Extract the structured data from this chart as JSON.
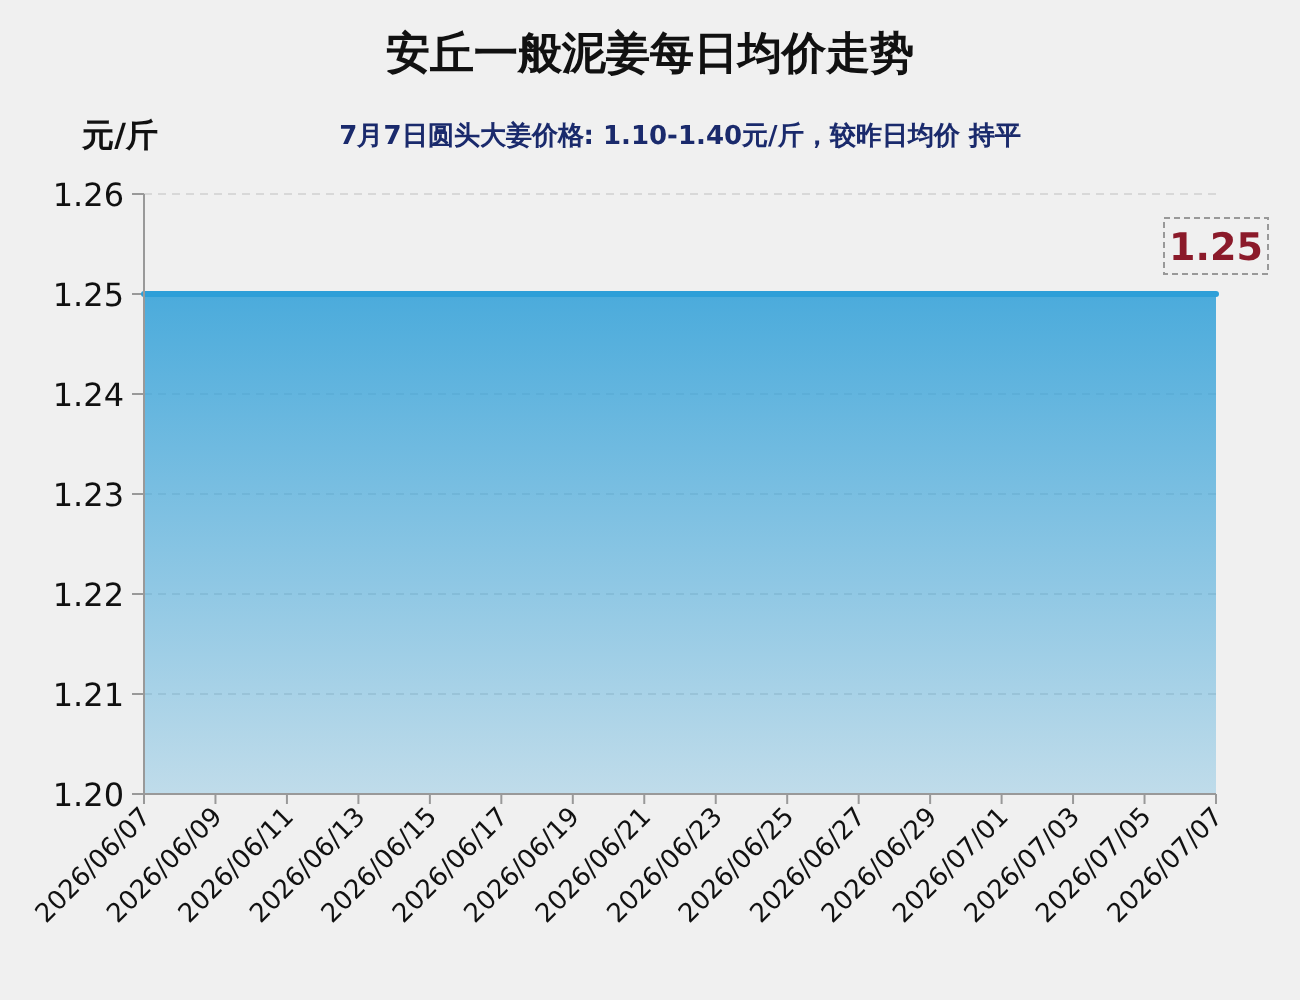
{
  "chart_data": {
    "type": "area",
    "title": "安丘一般泥姜每日均价走势",
    "subtitle": "7月7日圆头大姜价格: 1.10-1.40元/斤，较昨日均价 持平",
    "ylabel": "元/斤",
    "x": [
      "2026-06-07",
      "2026-06-08",
      "2026-06-09",
      "2026-06-10",
      "2026-06-11",
      "2026-06-12",
      "2026-06-13",
      "2026-06-14",
      "2026-06-15",
      "2026-06-16",
      "2026-06-17",
      "2026-06-18",
      "2026-06-19",
      "2026-06-20",
      "2026-06-21",
      "2026-06-22",
      "2026-06-23",
      "2026-06-24",
      "2026-06-25",
      "2026-06-26",
      "2026-06-27",
      "2026-06-28",
      "2026-06-29",
      "2026-06-30",
      "2026-07-01",
      "2026-07-02",
      "2026-07-03",
      "2026-07-04",
      "2026-07-05",
      "2026-07-06",
      "2026-07-07"
    ],
    "series": [
      {
        "color": "#2e9fd8",
        "values": [
          1.25,
          1.25,
          1.25,
          1.25,
          1.25,
          1.25,
          1.25,
          1.25,
          1.25,
          1.25,
          1.25,
          1.25,
          1.25,
          1.25,
          1.25,
          1.25,
          1.25,
          1.25,
          1.25,
          1.25,
          1.25,
          1.25,
          1.25,
          1.25,
          1.25,
          1.25,
          1.25,
          1.25,
          1.25,
          1.25,
          1.25
        ]
      }
    ],
    "xlim": [
      "2026-06-07",
      "2026-07-07"
    ],
    "xticks": [
      {
        "value": "2026-06-07",
        "label": "2026/06/07"
      },
      {
        "value": "2026-06-09",
        "label": "2026/06/09"
      },
      {
        "value": "2026-06-11",
        "label": "2026/06/11"
      },
      {
        "value": "2026-06-13",
        "label": "2026/06/13"
      },
      {
        "value": "2026-06-15",
        "label": "2026/06/15"
      },
      {
        "value": "2026-06-17",
        "label": "2026/06/17"
      },
      {
        "value": "2026-06-19",
        "label": "2026/06/19"
      },
      {
        "value": "2026-06-21",
        "label": "2026/06/21"
      },
      {
        "value": "2026-06-23",
        "label": "2026/06/23"
      },
      {
        "value": "2026-06-25",
        "label": "2026/06/25"
      },
      {
        "value": "2026-06-27",
        "label": "2026/06/27"
      },
      {
        "value": "2026-06-29",
        "label": "2026/06/29"
      },
      {
        "value": "2026-07-01",
        "label": "2026/07/01"
      },
      {
        "value": "2026-07-03",
        "label": "2026/07/03"
      },
      {
        "value": "2026-07-05",
        "label": "2026/07/05"
      },
      {
        "value": "2026-07-07",
        "label": "2026/07/07"
      }
    ],
    "ylim": [
      1.2,
      1.26
    ],
    "yticks": [
      {
        "value": 1.2,
        "label": "1.20"
      },
      {
        "value": 1.21,
        "label": "1.21"
      },
      {
        "value": 1.22,
        "label": "1.22"
      },
      {
        "value": 1.23,
        "label": "1.23"
      },
      {
        "value": 1.24,
        "label": "1.24"
      },
      {
        "value": 1.25,
        "label": "1.25"
      },
      {
        "value": 1.26,
        "label": "1.26"
      }
    ],
    "grid": "y",
    "annotations": [
      {
        "text": "1.25",
        "x": "2026-07-07",
        "y": 1.25
      }
    ]
  }
}
